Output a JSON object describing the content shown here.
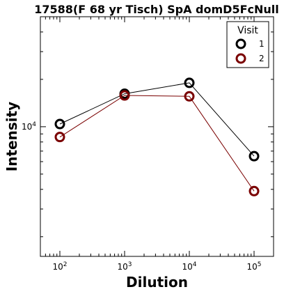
{
  "chart_data": {
    "type": "line",
    "title": "17588(F 68 yr Tisch) SpA domD5FcNull",
    "xlabel": "Dilution",
    "ylabel": "Intensity",
    "x_scale": "log",
    "y_scale": "log",
    "xlim": [
      50,
      200000
    ],
    "ylim": [
      1500,
      50000
    ],
    "x_ticks": [
      {
        "value": 100,
        "base": "10",
        "exp": "2"
      },
      {
        "value": 1000,
        "base": "10",
        "exp": "3"
      },
      {
        "value": 10000,
        "base": "10",
        "exp": "4"
      },
      {
        "value": 100000,
        "base": "10",
        "exp": "5"
      }
    ],
    "y_ticks": [
      {
        "value": 10000,
        "base": "10",
        "exp": "4"
      }
    ],
    "legend": {
      "title": "Visit",
      "placement": "top-right"
    },
    "series": [
      {
        "name": "1",
        "color": "#000000",
        "x": [
          100,
          1000,
          10000,
          100000
        ],
        "y": [
          10400,
          16200,
          19000,
          6500
        ]
      },
      {
        "name": "2",
        "color": "#7a0000",
        "x": [
          100,
          1000,
          10000,
          100000
        ],
        "y": [
          8600,
          15800,
          15600,
          3900
        ]
      }
    ]
  }
}
